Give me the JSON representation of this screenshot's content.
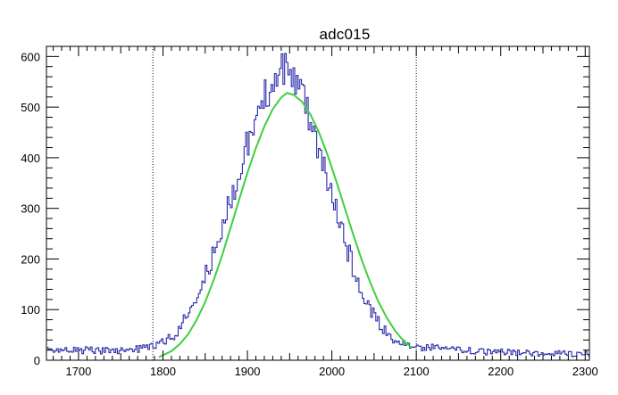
{
  "chart_data": {
    "type": "line",
    "title": "adc015",
    "xlabel": "",
    "ylabel": "",
    "xlim": [
      1662,
      2305
    ],
    "ylim": [
      0,
      620
    ],
    "x_ticks": [
      1700,
      1800,
      1900,
      2000,
      2100,
      2200,
      2300
    ],
    "y_ticks": [
      0,
      100,
      200,
      300,
      400,
      500,
      600
    ],
    "grid": false,
    "legend": "none",
    "vertical_markers": [
      1788,
      2100
    ],
    "series": [
      {
        "kind": "histogram",
        "color": "#2a2aa8",
        "x": [
          1665,
          1680,
          1700,
          1720,
          1740,
          1760,
          1780,
          1790,
          1800,
          1810,
          1820,
          1830,
          1840,
          1850,
          1860,
          1870,
          1880,
          1890,
          1900,
          1910,
          1920,
          1930,
          1940,
          1945,
          1950,
          1960,
          1970,
          1980,
          1990,
          2000,
          2010,
          2020,
          2030,
          2040,
          2050,
          2060,
          2070,
          2080,
          2090,
          2100,
          2120,
          2140,
          2160,
          2180,
          2200,
          2220,
          2240,
          2260,
          2280,
          2300
        ],
        "y": [
          22,
          20,
          20,
          19,
          19,
          21,
          24,
          27,
          37,
          48,
          66,
          96,
          130,
          170,
          215,
          265,
          320,
          375,
          430,
          480,
          525,
          555,
          575,
          585,
          570,
          540,
          500,
          445,
          385,
          325,
          265,
          205,
          155,
          115,
          82,
          60,
          45,
          36,
          30,
          28,
          24,
          21,
          19,
          17,
          16,
          15,
          14,
          13,
          13,
          12
        ]
      },
      {
        "kind": "fit",
        "color": "#3fd03f",
        "x": [
          1795,
          1810,
          1820,
          1830,
          1840,
          1850,
          1860,
          1870,
          1880,
          1890,
          1900,
          1910,
          1920,
          1930,
          1940,
          1947,
          1955,
          1965,
          1975,
          1985,
          1995,
          2005,
          2015,
          2025,
          2035,
          2045,
          2055,
          2065,
          2075,
          2085,
          2095
        ],
        "y": [
          6,
          18,
          32,
          52,
          80,
          115,
          158,
          207,
          261,
          316,
          370,
          419,
          462,
          496,
          519,
          528,
          524,
          510,
          484,
          449,
          405,
          355,
          302,
          250,
          200,
          155,
          116,
          84,
          58,
          38,
          24
        ]
      }
    ]
  }
}
